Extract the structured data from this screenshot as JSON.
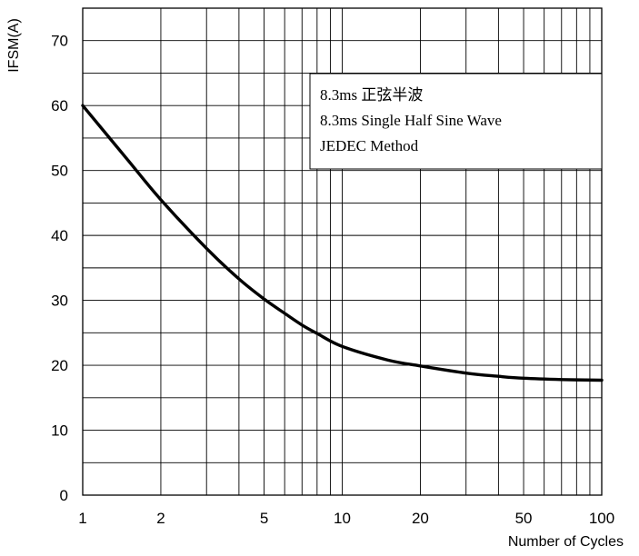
{
  "chart_data": {
    "type": "line",
    "title": "",
    "xlabel": "Number of Cycles",
    "ylabel": "IFSM(A)",
    "x_scale": "log",
    "xlim": [
      1,
      100
    ],
    "ylim": [
      0,
      75
    ],
    "x_ticks": [
      1,
      2,
      5,
      10,
      20,
      50,
      100
    ],
    "y_ticks": [
      0,
      10,
      20,
      30,
      40,
      50,
      60,
      70
    ],
    "grid": true,
    "legend": "none",
    "annotations": [
      "8.3ms 正弦半波",
      "8.3ms Single Half Sine Wave",
      "JEDEC Method"
    ],
    "series": [
      {
        "color": "#000000",
        "x": [
          1,
          1.5,
          2,
          3,
          4,
          5,
          6,
          7,
          8,
          10,
          15,
          20,
          30,
          40,
          50,
          70,
          100
        ],
        "y": [
          60,
          51.5,
          45.5,
          38,
          33.3,
          30.2,
          28,
          26.2,
          24.9,
          22.9,
          20.8,
          19.9,
          18.8,
          18.3,
          18.0,
          17.8,
          17.7
        ]
      }
    ]
  }
}
